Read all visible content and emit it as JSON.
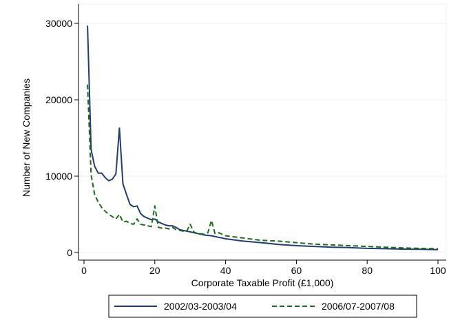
{
  "chart_data": {
    "type": "line",
    "title": "",
    "xlabel": "Corporate Taxable Profit (£1,000)",
    "ylabel": "Number of New Companies",
    "xlim": [
      0,
      100
    ],
    "ylim": [
      0,
      30000
    ],
    "xticks": [
      0,
      20,
      40,
      60,
      80,
      100
    ],
    "yticks": [
      0,
      10000,
      20000,
      30000
    ],
    "xtick_labels": [
      "0",
      "20",
      "40",
      "60",
      "80",
      "100"
    ],
    "ytick_labels": [
      "0",
      "10000",
      "20000",
      "30000"
    ],
    "grid": "horizontal",
    "legend_position": "bottom",
    "series": [
      {
        "name": "2002/03-2003/04",
        "color": "#1f3d6e",
        "dash": "solid",
        "x": [
          1,
          2,
          3,
          4,
          5,
          6,
          7,
          8,
          9,
          10,
          11,
          12,
          13,
          14,
          15,
          16,
          17,
          18,
          19,
          20,
          21,
          22,
          23,
          24,
          25,
          26,
          27,
          28,
          29,
          30,
          32,
          34,
          36,
          38,
          40,
          45,
          50,
          55,
          60,
          65,
          70,
          75,
          80,
          85,
          90,
          95,
          100
        ],
        "y": [
          29700,
          13500,
          11300,
          10400,
          10400,
          9800,
          9400,
          9600,
          10300,
          16300,
          9000,
          7600,
          6300,
          6000,
          6100,
          5100,
          4700,
          4500,
          4300,
          4400,
          4000,
          3800,
          3600,
          3500,
          3500,
          3300,
          3000,
          2900,
          2800,
          2700,
          2500,
          2300,
          2200,
          2000,
          1800,
          1500,
          1300,
          1050,
          900,
          800,
          700,
          650,
          550,
          500,
          450,
          430,
          380
        ]
      },
      {
        "name": "2006/07-2007/08",
        "color": "#1a6b1a",
        "dash": "dashed",
        "x": [
          1,
          2,
          3,
          4,
          5,
          6,
          7,
          8,
          9,
          10,
          11,
          12,
          13,
          14,
          15,
          16,
          17,
          18,
          19,
          20,
          21,
          22,
          23,
          24,
          25,
          26,
          27,
          28,
          29,
          30,
          31,
          32,
          34,
          35,
          36,
          37,
          38,
          40,
          45,
          50,
          55,
          60,
          65,
          70,
          75,
          80,
          85,
          90,
          95,
          100
        ],
        "y": [
          22000,
          10200,
          7600,
          6600,
          5900,
          5400,
          5000,
          4700,
          4400,
          5000,
          4000,
          4100,
          3800,
          3700,
          4400,
          3700,
          3600,
          3500,
          3400,
          6100,
          3300,
          3200,
          3200,
          3100,
          3300,
          3000,
          2900,
          2800,
          2800,
          3700,
          2700,
          2500,
          2400,
          2600,
          4200,
          2500,
          2600,
          2200,
          1900,
          1600,
          1500,
          1300,
          1100,
          1000,
          900,
          800,
          700,
          600,
          550,
          500
        ]
      }
    ]
  }
}
